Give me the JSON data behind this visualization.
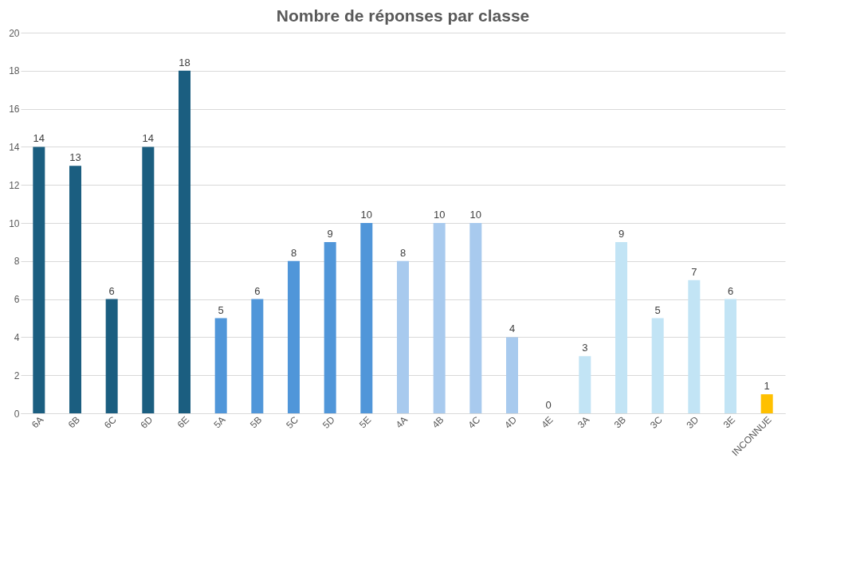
{
  "chart_data": {
    "type": "bar",
    "title": "Nombre de réponses par classe",
    "categories": [
      "6A",
      "6B",
      "6C",
      "6D",
      "6E",
      "5A",
      "5B",
      "5C",
      "5D",
      "5E",
      "4A",
      "4B",
      "4C",
      "4D",
      "4E",
      "3A",
      "3B",
      "3C",
      "3D",
      "3E",
      "INCONNUE"
    ],
    "values": [
      14,
      13,
      6,
      14,
      18,
      5,
      6,
      8,
      9,
      10,
      8,
      10,
      10,
      4,
      0,
      3,
      9,
      5,
      7,
      6,
      1
    ],
    "colors": [
      "#1b5e80",
      "#1b5e80",
      "#1b5e80",
      "#1b5e80",
      "#1b5e80",
      "#5096d9",
      "#5096d9",
      "#5096d9",
      "#5096d9",
      "#5096d9",
      "#a8caee",
      "#a8caee",
      "#a8caee",
      "#a8caee",
      "#a8caee",
      "#c2e4f5",
      "#c2e4f5",
      "#c2e4f5",
      "#c2e4f5",
      "#c2e4f5",
      "#ffc000"
    ],
    "ylim": [
      0,
      20
    ],
    "yticks": [
      0,
      2,
      4,
      6,
      8,
      10,
      12,
      14,
      16,
      18,
      20
    ],
    "grid": "y",
    "data_labels": true,
    "legend": false
  }
}
